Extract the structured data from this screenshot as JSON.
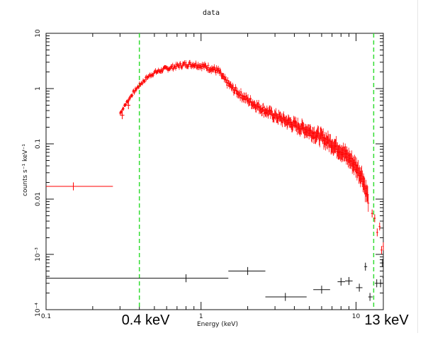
{
  "chart_data": {
    "type": "scatter",
    "title": "data",
    "xlabel": "Energy (keV)",
    "ylabel": "counts s⁻¹ keV⁻¹",
    "x_scale": "log",
    "y_scale": "log",
    "xlim": [
      0.1,
      15
    ],
    "ylim": [
      0.0001,
      10
    ],
    "x_ticks": [
      {
        "value": 0.1,
        "label": "0.1"
      },
      {
        "value": 1,
        "label": "1"
      },
      {
        "value": 10,
        "label": "10"
      }
    ],
    "y_ticks": [
      {
        "value": 0.0001,
        "label": "10⁻⁴"
      },
      {
        "value": 0.001,
        "label": "10⁻³"
      },
      {
        "value": 0.01,
        "label": "0.01"
      },
      {
        "value": 0.1,
        "label": "0.1"
      },
      {
        "value": 1,
        "label": "1"
      },
      {
        "value": 10,
        "label": "10"
      }
    ],
    "grid": false,
    "vlines": [
      {
        "x": 0.4,
        "label": "0.4 keV",
        "color": "#33dd33",
        "style": "dashed"
      },
      {
        "x": 13,
        "label": "13 keV",
        "color": "#33dd33",
        "style": "dashed"
      }
    ],
    "series": [
      {
        "color": "#ff0000",
        "dense_curve": [
          [
            0.3,
            0.36
          ],
          [
            0.33,
            0.55
          ],
          [
            0.36,
            0.8
          ],
          [
            0.4,
            1.15
          ],
          [
            0.45,
            1.6
          ],
          [
            0.5,
            1.95
          ],
          [
            0.6,
            2.3
          ],
          [
            0.7,
            2.55
          ],
          [
            0.8,
            2.75
          ],
          [
            0.9,
            2.75
          ],
          [
            1.0,
            2.6
          ],
          [
            1.15,
            2.35
          ],
          [
            1.3,
            2.05
          ],
          [
            1.4,
            1.5
          ],
          [
            1.6,
            1.0
          ],
          [
            2.0,
            0.62
          ],
          [
            2.5,
            0.42
          ],
          [
            3.0,
            0.32
          ],
          [
            4.0,
            0.22
          ],
          [
            5.0,
            0.17
          ],
          [
            6.0,
            0.13
          ],
          [
            7.0,
            0.1
          ],
          [
            8.0,
            0.075
          ],
          [
            9.0,
            0.055
          ],
          [
            10.0,
            0.038
          ],
          [
            11.0,
            0.025
          ],
          [
            11.5,
            0.015
          ],
          [
            12.0,
            0.01
          ]
        ],
        "points": [
          {
            "x": 0.15,
            "y": 0.017,
            "xlo": 0.1,
            "xhi": 0.27
          },
          {
            "x": 0.31,
            "y": 0.33,
            "xlo": 0.3,
            "xhi": 0.32
          },
          {
            "x": 0.34,
            "y": 0.5,
            "xlo": 0.33,
            "xhi": 0.35
          },
          {
            "x": 12.7,
            "y": 0.0055,
            "xlo": 12.5,
            "xhi": 12.9
          },
          {
            "x": 13.2,
            "y": 0.0045,
            "xlo": 13.0,
            "xhi": 13.4
          },
          {
            "x": 13.7,
            "y": 0.0025,
            "xlo": 13.5,
            "xhi": 13.9
          },
          {
            "x": 14.2,
            "y": 0.0032,
            "xlo": 14.0,
            "xhi": 14.4
          },
          {
            "x": 14.6,
            "y": 0.0012,
            "xlo": 14.4,
            "xhi": 14.8
          },
          {
            "x": 15.0,
            "y": 0.0014,
            "xlo": 14.8,
            "xhi": 15.0
          }
        ]
      },
      {
        "color": "#111111",
        "points": [
          {
            "x": 0.8,
            "y": 0.00037,
            "xlo": 0.1,
            "xhi": 1.5
          },
          {
            "x": 2.0,
            "y": 0.0005,
            "xlo": 1.5,
            "xhi": 2.6
          },
          {
            "x": 3.5,
            "y": 0.00017,
            "xlo": 2.6,
            "xhi": 4.8
          },
          {
            "x": 6.0,
            "y": 0.00023,
            "xlo": 5.3,
            "xhi": 6.8
          },
          {
            "x": 8.0,
            "y": 0.00032,
            "xlo": 7.6,
            "xhi": 8.5
          },
          {
            "x": 9.0,
            "y": 0.00033,
            "xlo": 8.5,
            "xhi": 9.5
          },
          {
            "x": 10.5,
            "y": 0.00025,
            "xlo": 10.0,
            "xhi": 11.0
          },
          {
            "x": 11.5,
            "y": 0.0006,
            "xlo": 11.3,
            "xhi": 11.8
          },
          {
            "x": 12.3,
            "y": 0.00017,
            "xlo": 12.0,
            "xhi": 12.8
          },
          {
            "x": 13.6,
            "y": 0.0003,
            "xlo": 13.2,
            "xhi": 14.0
          },
          {
            "x": 14.4,
            "y": 0.0003,
            "xlo": 14.0,
            "xhi": 14.8
          },
          {
            "x": 14.8,
            "y": 0.0007,
            "xlo": 14.6,
            "xhi": 15.0
          },
          {
            "x": 15.0,
            "y": 0.00038,
            "xlo": 14.8,
            "xhi": 15.0
          }
        ]
      }
    ]
  }
}
